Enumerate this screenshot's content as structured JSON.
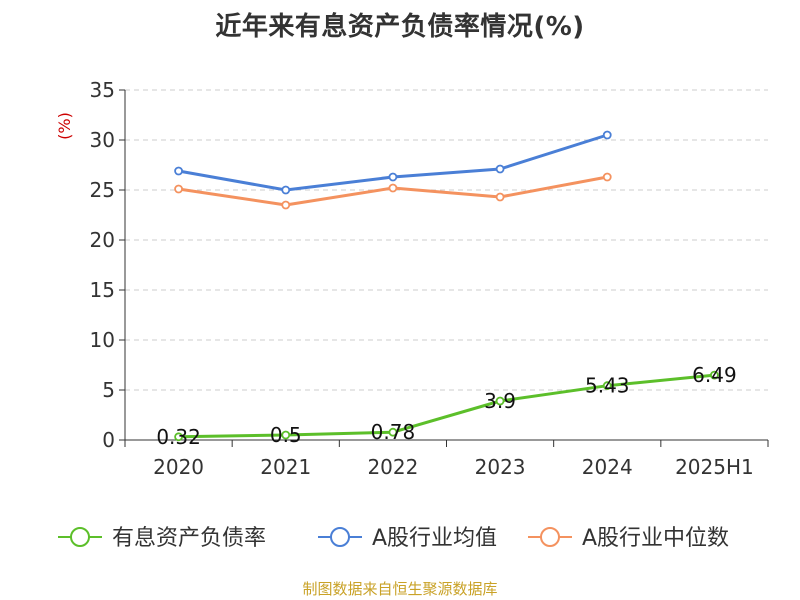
{
  "title": "近年来有息资产负债率情况(%)",
  "footer": "制图数据来自恒生聚源数据库",
  "chart_data": {
    "type": "line",
    "title": "近年来有息资产负债率情况(%)",
    "ylabel": "(%)",
    "xlabel": "",
    "categories": [
      "2020",
      "2021",
      "2022",
      "2023",
      "2024",
      "2025H1"
    ],
    "ylim": [
      0,
      35
    ],
    "yticks": [
      0,
      5,
      10,
      15,
      20,
      25,
      30,
      35
    ],
    "grid": "horizontal-dashed",
    "legend_position": "bottom",
    "series": [
      {
        "name": "有息资产负债率",
        "color": "#5cbf2a",
        "values": [
          0.32,
          0.5,
          0.78,
          3.9,
          5.43,
          6.49
        ],
        "data_labels": [
          "0.32",
          "0.5",
          "0.78",
          "3.9",
          "5.43",
          "6.49"
        ]
      },
      {
        "name": "A股行业均值",
        "color": "#4a7fd6",
        "values": [
          26.9,
          25.0,
          26.3,
          27.1,
          30.5,
          null
        ]
      },
      {
        "name": "A股行业中位数",
        "color": "#f4925f",
        "values": [
          25.1,
          23.5,
          25.2,
          24.3,
          26.3,
          null
        ]
      }
    ],
    "axis_color": "#333333",
    "grid_color": "#cccccc",
    "ylabel_color": "#cc0000"
  }
}
